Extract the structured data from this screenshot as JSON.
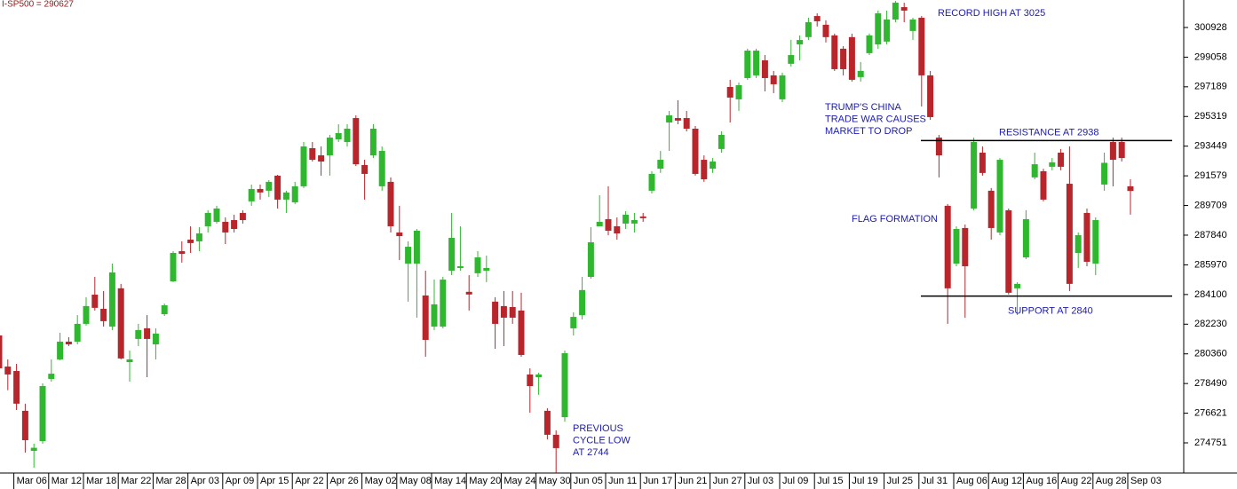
{
  "chart_data": {
    "type": "candlestick",
    "header": "I-SP500 = 290627",
    "up_color": "#2fb82f",
    "down_color": "#b8262c",
    "ylim": [
      272850,
      302660
    ],
    "yticks": [
      300928,
      299058,
      297189,
      295319,
      293449,
      291579,
      289709,
      287840,
      285970,
      284100,
      282230,
      280360,
      278490,
      276621,
      274751
    ],
    "categories": [
      null,
      null,
      "Mar 06",
      null,
      null,
      null,
      "Mar 12",
      null,
      null,
      null,
      "Mar 18",
      null,
      null,
      null,
      "Mar 22",
      null,
      null,
      null,
      "Mar 28",
      null,
      null,
      null,
      "Apr 03",
      null,
      null,
      null,
      "Apr 09",
      null,
      null,
      null,
      "Apr 15",
      null,
      null,
      null,
      "Apr 22",
      null,
      null,
      null,
      "Apr 26",
      null,
      null,
      null,
      "May 02",
      null,
      null,
      null,
      "May 08",
      null,
      null,
      null,
      "May 14",
      null,
      null,
      null,
      "May 20",
      null,
      null,
      null,
      "May 24",
      null,
      null,
      null,
      "May 30",
      null,
      null,
      null,
      "Jun 05",
      null,
      null,
      null,
      "Jun 11",
      null,
      null,
      null,
      "Jun 17",
      null,
      null,
      null,
      "Jun 21",
      null,
      null,
      null,
      "Jun 27",
      null,
      null,
      null,
      "Jul 03",
      null,
      null,
      null,
      "Jul 09",
      null,
      null,
      null,
      "Jul 15",
      null,
      null,
      null,
      "Jul 19",
      null,
      null,
      null,
      "Jul 25",
      null,
      null,
      null,
      "Jul 31",
      null,
      null,
      null,
      "Aug 06",
      null,
      null,
      null,
      "Aug 12",
      null,
      null,
      null,
      "Aug 16",
      null,
      null,
      null,
      "Aug 22",
      null,
      null,
      null,
      "Aug 28",
      null,
      null,
      null,
      "Sep 03"
    ],
    "open": [
      281520,
      279560,
      279280,
      276770,
      274250,
      274860,
      278780,
      280010,
      281130,
      281130,
      282250,
      284090,
      283200,
      282080,
      284490,
      279840,
      281300,
      281970,
      280960,
      282860,
      284930,
      286830,
      287560,
      287450,
      288400,
      288680,
      288680,
      288790,
      289240,
      289970,
      290750,
      290640,
      291590,
      290080,
      289910,
      290920,
      293320,
      292870,
      292870,
      293880,
      293710,
      295220,
      292260,
      292870,
      290920,
      291200,
      288010,
      286050,
      286050,
      284040,
      282080,
      282080,
      285600,
      285770,
      284270,
      285440,
      285600,
      283650,
      283370,
      283310,
      283090,
      279060,
      278890,
      276770,
      275260,
      276370,
      281970,
      282800,
      285210,
      288400,
      288850,
      288400,
      288570,
      288570,
      289020,
      290640,
      292030,
      294940,
      295220,
      295220,
      294550,
      292590,
      292030,
      293270,
      297180,
      296400,
      297740,
      297910,
      298860,
      297910,
      296400,
      298640,
      299860,
      300320,
      301650,
      301100,
      300430,
      299590,
      300320,
      297800,
      299310,
      299860,
      300040,
      301430,
      302210,
      300710,
      301540,
      297910,
      293990,
      289690,
      286050,
      288290,
      289520,
      293040,
      290640,
      288010,
      289410,
      284490,
      286440,
      291480,
      291870,
      292150,
      293040,
      291080,
      286720,
      289240,
      286050,
      291030,
      293710,
      293710,
      290920
    ],
    "high": [
      281690,
      280010,
      279730,
      277220,
      274700,
      278500,
      280010,
      281690,
      281410,
      282800,
      283930,
      285210,
      284320,
      286050,
      284770,
      280570,
      282250,
      282800,
      281970,
      283530,
      286830,
      287450,
      288400,
      288340,
      289410,
      289690,
      288960,
      289130,
      289410,
      291030,
      291030,
      291310,
      291640,
      290640,
      291200,
      293710,
      293710,
      293430,
      294160,
      294830,
      294830,
      295390,
      292590,
      294830,
      293430,
      291480,
      289690,
      287450,
      288230,
      285600,
      285040,
      285210,
      289240,
      288400,
      285320,
      286830,
      286550,
      283930,
      284320,
      284320,
      284210,
      279450,
      279170,
      276930,
      275540,
      280570,
      282980,
      285210,
      288340,
      290360,
      290920,
      288960,
      289350,
      289240,
      289240,
      291870,
      293150,
      295670,
      296340,
      295670,
      294720,
      292870,
      292700,
      294380,
      297630,
      297460,
      299590,
      299590,
      299190,
      298190,
      298080,
      300150,
      300430,
      301540,
      301820,
      301380,
      300540,
      299750,
      300540,
      298750,
      300540,
      301990,
      301990,
      302600,
      302490,
      301540,
      301650,
      298190,
      294160,
      289800,
      288400,
      288510,
      293990,
      293430,
      290810,
      292700,
      289520,
      284880,
      289410,
      293040,
      292030,
      292700,
      293270,
      293430,
      288010,
      289520,
      288960,
      293040,
      293990,
      293990,
      291360
    ],
    "low": [
      276930,
      278070,
      276820,
      274140,
      273190,
      274700,
      278610,
      279950,
      280850,
      280960,
      282140,
      283090,
      282080,
      281860,
      280010,
      278610,
      280850,
      278890,
      280010,
      282750,
      284880,
      286110,
      286720,
      286830,
      288010,
      288570,
      287280,
      288010,
      288570,
      289690,
      290080,
      290250,
      289520,
      289240,
      289800,
      290810,
      292480,
      291590,
      291590,
      293710,
      293430,
      292200,
      290080,
      292700,
      290640,
      288010,
      286270,
      283650,
      282640,
      280180,
      281860,
      281970,
      285320,
      285600,
      283090,
      285210,
      284880,
      280680,
      280850,
      282250,
      280180,
      276650,
      277780,
      274970,
      272860,
      276090,
      281520,
      282530,
      285100,
      288400,
      287840,
      287560,
      288230,
      288010,
      288680,
      290470,
      291760,
      293150,
      294830,
      294380,
      291590,
      291200,
      291760,
      293040,
      294940,
      295670,
      297630,
      297740,
      296900,
      296790,
      296230,
      298470,
      298860,
      300150,
      300990,
      299980,
      298190,
      297910,
      297520,
      297520,
      299190,
      299590,
      299860,
      301260,
      301260,
      300150,
      295950,
      295110,
      291480,
      282250,
      285880,
      282640,
      289410,
      291590,
      287560,
      287840,
      284100,
      282800,
      286330,
      291360,
      289970,
      291930,
      291930,
      284320,
      285770,
      285880,
      285320,
      290640,
      290920,
      292480,
      289130
    ],
    "close": [
      279450,
      279060,
      277220,
      274920,
      274440,
      278330,
      279110,
      281130,
      280960,
      282250,
      283370,
      283260,
      282420,
      285490,
      280070,
      280010,
      281860,
      281300,
      281640,
      283420,
      286720,
      286660,
      287340,
      287950,
      289240,
      289520,
      288010,
      288230,
      288790,
      290750,
      290530,
      291200,
      290080,
      290530,
      290920,
      293430,
      292590,
      292480,
      293990,
      294270,
      294550,
      292310,
      291700,
      294550,
      293150,
      288400,
      287780,
      287110,
      288120,
      281240,
      283480,
      285040,
      287670,
      285880,
      284100,
      286440,
      285770,
      282250,
      282640,
      282640,
      280290,
      278330,
      279060,
      275260,
      274420,
      280400,
      282690,
      284380,
      287390,
      288680,
      288120,
      287950,
      289130,
      288790,
      288910,
      291700,
      292590,
      295390,
      295060,
      294550,
      291700,
      291360,
      292480,
      294160,
      296510,
      297290,
      299470,
      299470,
      297740,
      297350,
      297910,
      299190,
      300140,
      301260,
      301320,
      300320,
      298300,
      298300,
      297630,
      298190,
      300430,
      301820,
      301430,
      302490,
      301990,
      301430,
      297910,
      295280,
      292870,
      284490,
      288230,
      285880,
      293710,
      291760,
      288290,
      292590,
      284210,
      284770,
      288850,
      292310,
      290080,
      292430,
      292150,
      284770,
      287840,
      286160,
      288790,
      292400,
      292590,
      292700,
      290627
    ],
    "levels": [
      {
        "value": 293800,
        "label": "RESISTANCE AT 2938"
      },
      {
        "value": 284000,
        "label": "SUPPORT AT 2840"
      }
    ],
    "annotations": [
      {
        "lines": [
          "RECORD HIGH AT 3025"
        ]
      },
      {
        "lines": [
          "TRUMP'S CHINA",
          "TRADE WAR CAUSES",
          "MARKET TO DROP"
        ]
      },
      {
        "lines": [
          "FLAG FORMATION"
        ]
      },
      {
        "lines": [
          "PREVIOUS",
          "CYCLE LOW",
          "AT 2744"
        ]
      }
    ]
  }
}
